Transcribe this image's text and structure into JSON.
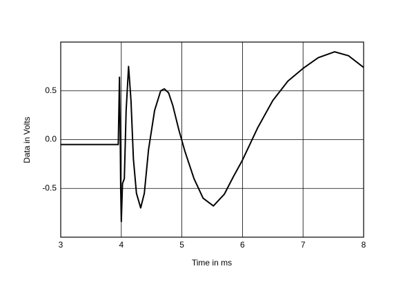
{
  "chart_data": {
    "type": "line",
    "xlabel": "Time in ms",
    "ylabel": "Data in Volts",
    "x": [
      3.0,
      3.95,
      3.96,
      3.97,
      3.98,
      3.99,
      4.0,
      4.02,
      4.05,
      4.08,
      4.12,
      4.16,
      4.2,
      4.25,
      4.32,
      4.38,
      4.45,
      4.55,
      4.65,
      4.71,
      4.78,
      4.85,
      4.95,
      5.05,
      5.2,
      5.35,
      5.52,
      5.7,
      5.85,
      6.0,
      6.25,
      6.5,
      6.75,
      7.0,
      7.25,
      7.52,
      7.75,
      8.0
    ],
    "series": [
      {
        "color": "#000000",
        "values": [
          -0.05,
          -0.05,
          0.3,
          0.64,
          0.2,
          -0.5,
          -0.84,
          -0.45,
          -0.4,
          0.3,
          0.75,
          0.4,
          -0.2,
          -0.55,
          -0.7,
          -0.55,
          -0.1,
          0.3,
          0.5,
          0.52,
          0.48,
          0.35,
          0.1,
          -0.12,
          -0.4,
          -0.6,
          -0.68,
          -0.56,
          -0.38,
          -0.21,
          0.12,
          0.4,
          0.6,
          0.73,
          0.84,
          0.9,
          0.86,
          0.74
        ]
      }
    ],
    "xlim": [
      3,
      8
    ],
    "xticks": [
      3,
      4,
      5,
      6,
      7,
      8
    ],
    "ylim": [
      -1,
      1
    ],
    "yticks": [
      -0.5,
      {
        "value": 0,
        "label": "0.0"
      },
      0.5
    ],
    "grid": true
  }
}
